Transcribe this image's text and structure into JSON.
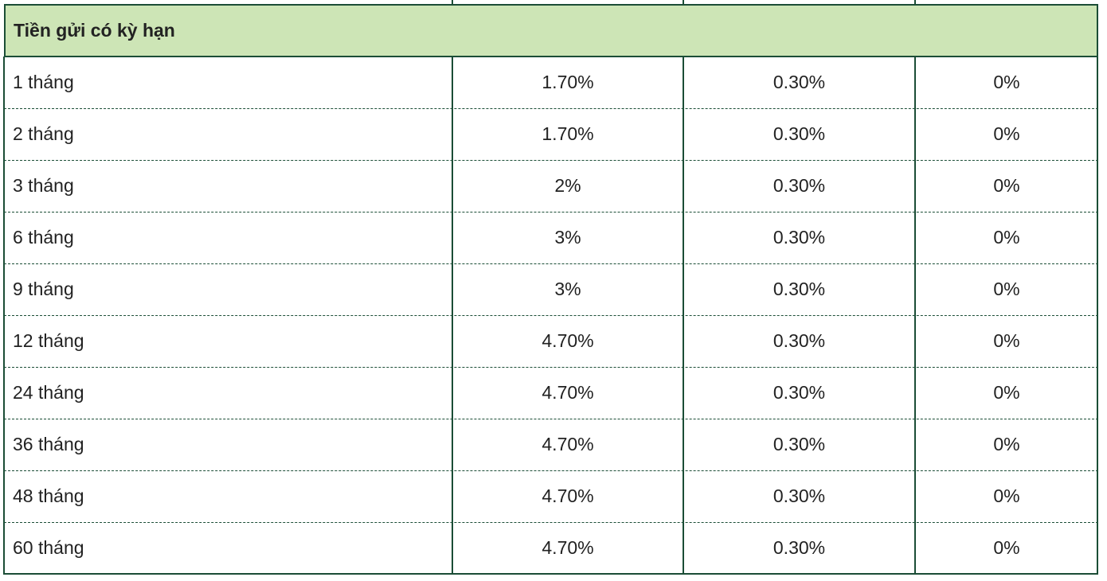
{
  "table": {
    "section": "Tiền gửi có kỳ hạn",
    "rows": [
      [
        "1 tháng",
        "1.70%",
        "0.30%",
        "0%"
      ],
      [
        "2 tháng",
        "1.70%",
        "0.30%",
        "0%"
      ],
      [
        "3 tháng",
        "2%",
        "0.30%",
        "0%"
      ],
      [
        "6 tháng",
        "3%",
        "0.30%",
        "0%"
      ],
      [
        "9 tháng",
        "3%",
        "0.30%",
        "0%"
      ],
      [
        "12 tháng",
        "4.70%",
        "0.30%",
        "0%"
      ],
      [
        "24 tháng",
        "4.70%",
        "0.30%",
        "0%"
      ],
      [
        "36 tháng",
        "4.70%",
        "0.30%",
        "0%"
      ],
      [
        "48 tháng",
        "4.70%",
        "0.30%",
        "0%"
      ],
      [
        "60 tháng",
        "4.70%",
        "0.30%",
        "0%"
      ]
    ]
  }
}
